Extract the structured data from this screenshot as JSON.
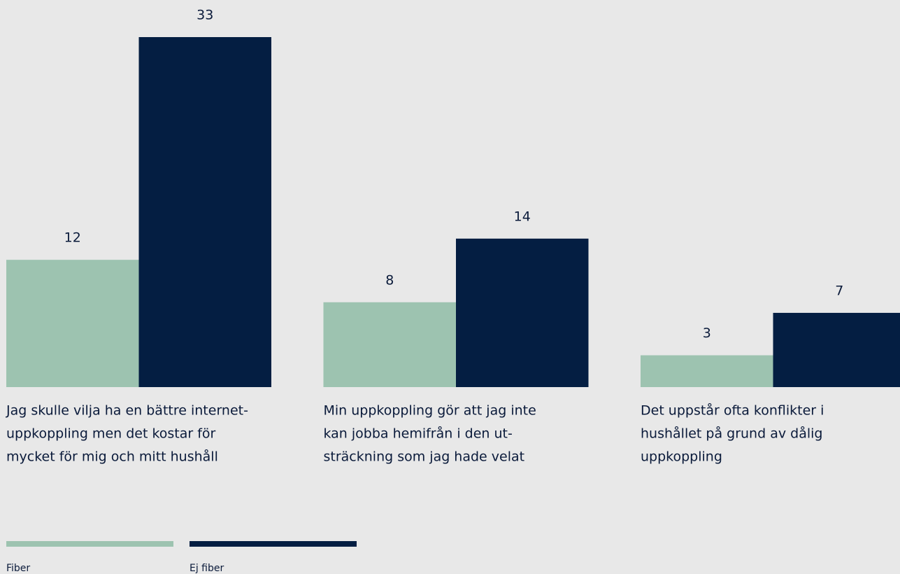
{
  "chart_data": {
    "type": "bar",
    "categories": [
      [
        "Jag skulle vilja ha en bättre internet-",
        "uppkoppling men det kostar för",
        "mycket för mig och mitt hushåll"
      ],
      [
        "Min uppkoppling gör att jag inte",
        "kan jobba hemifrån i den ut-",
        "sträckning som jag hade velat"
      ],
      [
        "Det uppstår ofta konflikter i",
        "hushållet på grund av dålig",
        "uppkoppling"
      ]
    ],
    "series": [
      {
        "name": "Fiber",
        "color": "#9dc3b0",
        "values": [
          12,
          8,
          3
        ]
      },
      {
        "name": "Ej fiber",
        "color": "#041e42",
        "values": [
          33,
          14,
          7
        ]
      }
    ]
  }
}
